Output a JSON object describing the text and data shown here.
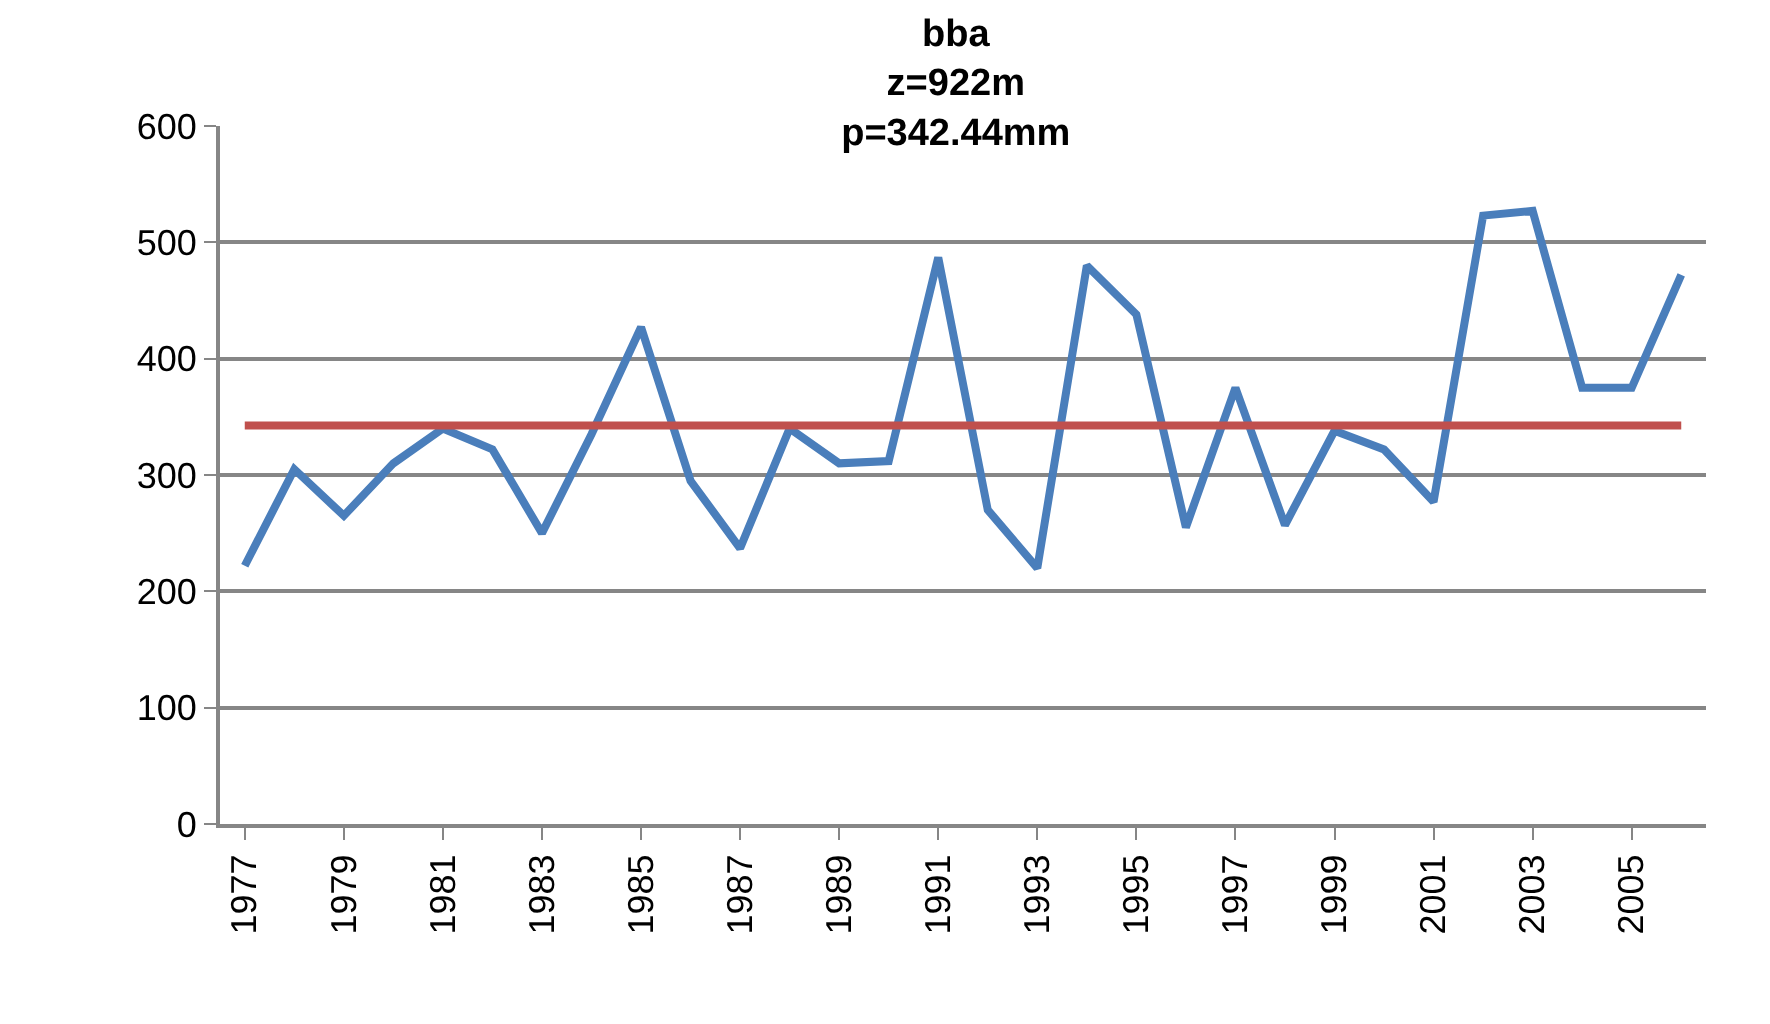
{
  "chart_data": {
    "type": "line",
    "title": "bba\nz=922m\np=342.44mm",
    "categories": [
      "1977",
      null,
      "1979",
      null,
      "1981",
      null,
      "1983",
      null,
      "1985",
      null,
      "1987",
      null,
      "1989",
      null,
      "1991",
      null,
      "1993",
      null,
      "1995",
      null,
      "1997",
      null,
      "1999",
      null,
      "2001",
      null,
      "2003",
      null,
      "2005",
      null
    ],
    "series": [
      {
        "color": "#4a7ebb",
        "values": [
          222,
          305,
          265,
          310,
          340,
          322,
          250,
          335,
          427,
          295,
          237,
          340,
          310,
          312,
          487,
          270,
          220,
          480,
          438,
          255,
          375,
          257,
          338,
          322,
          277,
          523,
          527,
          375,
          375,
          472
        ]
      }
    ],
    "ref_lines": [
      {
        "axis": "y",
        "value": 342.44,
        "color": "#c0504d"
      }
    ],
    "ylim": [
      0,
      600
    ],
    "yticks": [
      0,
      100,
      200,
      300,
      400,
      500,
      600
    ],
    "grid": "y",
    "marker": "none",
    "line_style": "solid"
  }
}
